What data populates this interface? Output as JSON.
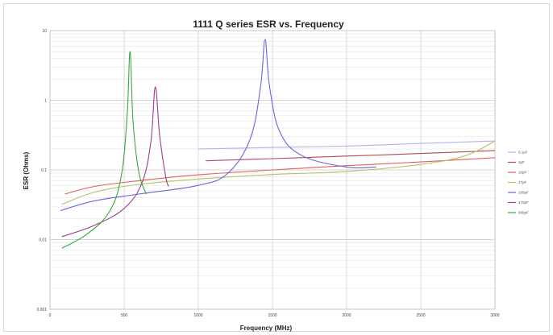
{
  "chart_data": {
    "type": "line",
    "title": "1111 Q series ESR vs. Frequency",
    "xlabel": "Frequency (MHz)",
    "ylabel": "ESR (Ohms)",
    "xlim": [
      0,
      3000
    ],
    "ylim": [
      0.001,
      10
    ],
    "yscale": "log",
    "grid": true,
    "legend_position": "right",
    "x_ticks": [
      "0",
      "500",
      "1000",
      "1500",
      "2000",
      "2500",
      "3000"
    ],
    "y_ticks": [
      "10",
      "1",
      "0.1",
      "0.01",
      "0.001"
    ],
    "series": [
      {
        "name": "0.1pF",
        "color": "#b3b3ee",
        "x": [
          1000,
          1500,
          2000,
          2500,
          3000
        ],
        "y": [
          0.2,
          0.21,
          0.22,
          0.24,
          0.26
        ]
      },
      {
        "name": "1pF",
        "color": "#b04a55",
        "x": [
          1050,
          1500,
          2000,
          2500,
          3000
        ],
        "y": [
          0.135,
          0.145,
          0.158,
          0.172,
          0.19
        ]
      },
      {
        "name": "10pF",
        "color": "#e0605a",
        "x": [
          100,
          300,
          600,
          1000,
          1500,
          2000,
          2500,
          3000
        ],
        "y": [
          0.045,
          0.058,
          0.07,
          0.085,
          0.1,
          0.115,
          0.13,
          0.15
        ]
      },
      {
        "name": "47pF",
        "color": "#b5c26a",
        "x": [
          80,
          300,
          600,
          1000,
          1500,
          2000,
          2500,
          2800,
          3000
        ],
        "y": [
          0.032,
          0.048,
          0.062,
          0.074,
          0.086,
          0.095,
          0.12,
          0.16,
          0.26
        ]
      },
      {
        "name": "100pF",
        "color": "#6666e0",
        "x": [
          70,
          300,
          600,
          1000,
          1200,
          1350,
          1420,
          1450,
          1480,
          1550,
          1700,
          2000,
          2200
        ],
        "y": [
          0.026,
          0.036,
          0.045,
          0.06,
          0.09,
          0.28,
          1.6,
          7.5,
          1.6,
          0.35,
          0.16,
          0.11,
          0.11
        ]
      },
      {
        "name": "470pF",
        "color": "#a03c90",
        "x": [
          80,
          300,
          500,
          620,
          680,
          710,
          740,
          780,
          800
        ],
        "y": [
          0.011,
          0.016,
          0.028,
          0.065,
          0.25,
          1.55,
          0.3,
          0.08,
          0.058
        ]
      },
      {
        "name": "680pF",
        "color": "#3aa840",
        "x": [
          80,
          250,
          400,
          480,
          520,
          540,
          560,
          600,
          650
        ],
        "y": [
          0.0075,
          0.012,
          0.025,
          0.08,
          0.6,
          5.0,
          0.5,
          0.09,
          0.045
        ]
      }
    ]
  }
}
